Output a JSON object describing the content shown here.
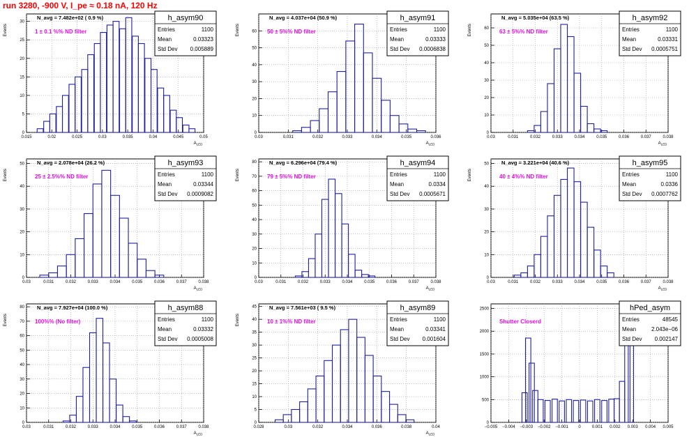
{
  "title": "run 3280,  -900 V, I_pe ≈ 0.18 nA, 120 Hz",
  "chart_data": [
    {
      "type": "bar",
      "name": "h_asym90",
      "ylabel": "Events",
      "xlabel": "A_LED",
      "xlim": [
        0.015,
        0.05
      ],
      "ylim": [
        0,
        32
      ],
      "xticks": [
        "0.015",
        "0.02",
        "0.025",
        "0.03",
        "0.035",
        "0.04",
        "0.045",
        "0.05"
      ],
      "yticks": [
        "0",
        "5",
        "10",
        "15",
        "20",
        "25",
        "30"
      ],
      "navg": "N_avg = 7.482e+02 ( 0.9 %)",
      "annotation": "1 ± 0.1 %% ND filter",
      "stats": {
        "entries": "1100",
        "mean": "0.03323",
        "std_dev": "0.005889"
      },
      "x": [
        0.0165,
        0.0177,
        0.019,
        0.0202,
        0.0215,
        0.0227,
        0.024,
        0.0252,
        0.0265,
        0.0277,
        0.029,
        0.0302,
        0.0315,
        0.0327,
        0.034,
        0.0352,
        0.0365,
        0.0377,
        0.039,
        0.0402,
        0.0415,
        0.0427,
        0.044,
        0.0452,
        0.0465,
        0.0477,
        0.049
      ],
      "values": [
        0,
        1,
        3,
        5,
        7,
        10,
        13,
        15,
        17,
        21,
        24,
        27,
        29,
        30,
        28,
        31,
        26,
        24,
        20,
        17,
        12,
        10,
        6,
        4,
        2,
        1,
        0
      ]
    },
    {
      "type": "bar",
      "name": "h_asym91",
      "ylabel": "Events",
      "xlabel": "A_LED",
      "xlim": [
        0.03,
        0.036
      ],
      "ylim": [
        0,
        70
      ],
      "xticks": [
        "0.03",
        "0.031",
        "0.032",
        "0.033",
        "0.034",
        "0.035",
        "0.036"
      ],
      "yticks": [
        "0",
        "10",
        "20",
        "30",
        "40",
        "50",
        "60"
      ],
      "navg": "N_avg = 4.037e+04 (50.9 %)",
      "annotation": "50 ± 5%% ND filter",
      "stats": {
        "entries": "1100",
        "mean": "0.03333",
        "std_dev": "0.0006838"
      },
      "x": [
        0.0313,
        0.0316,
        0.0319,
        0.0322,
        0.0325,
        0.0328,
        0.0331,
        0.0334,
        0.0337,
        0.034,
        0.0343,
        0.0346,
        0.0349,
        0.0352,
        0.0355
      ],
      "values": [
        1,
        3,
        7,
        14,
        24,
        36,
        54,
        64,
        47,
        32,
        19,
        10,
        5,
        2,
        1
      ]
    },
    {
      "type": "bar",
      "name": "h_asym92",
      "ylabel": "Events",
      "xlabel": "A_LED",
      "xlim": [
        0.03,
        0.038
      ],
      "ylim": [
        0,
        68
      ],
      "xticks": [
        "0.03",
        "0.031",
        "0.032",
        "0.033",
        "0.034",
        "0.035",
        "0.036",
        "0.037",
        "0.038"
      ],
      "yticks": [
        "0",
        "10",
        "20",
        "30",
        "40",
        "50",
        "60"
      ],
      "navg": "N_avg = 5.035e+04 (63.5 %)",
      "annotation": "63 ± 5%% ND filter",
      "stats": {
        "entries": "1100",
        "mean": "0.03331",
        "std_dev": "0.0005751"
      },
      "x": [
        0.0318,
        0.0321,
        0.0324,
        0.0327,
        0.033,
        0.0333,
        0.0336,
        0.0339,
        0.0342,
        0.0345,
        0.0348,
        0.0351
      ],
      "values": [
        1,
        4,
        12,
        28,
        48,
        62,
        55,
        34,
        15,
        5,
        2,
        1
      ]
    },
    {
      "type": "bar",
      "name": "h_asym93",
      "ylabel": "Events",
      "xlabel": "A_LED",
      "xlim": [
        0.03,
        0.038
      ],
      "ylim": [
        0,
        52
      ],
      "xticks": [
        "0.03",
        "0.031",
        "0.032",
        "0.033",
        "0.034",
        "0.035",
        "0.036",
        "0.037",
        "0.038"
      ],
      "yticks": [
        "0",
        "10",
        "20",
        "30",
        "40",
        "50"
      ],
      "navg": "N_avg = 2.078e+04 (26.2 %)",
      "annotation": "25 ± 2.5%% ND filter",
      "stats": {
        "entries": "1100",
        "mean": "0.03344",
        "std_dev": "0.0009082"
      },
      "x": [
        0.0308,
        0.0312,
        0.0316,
        0.032,
        0.0324,
        0.0328,
        0.0332,
        0.0336,
        0.034,
        0.0344,
        0.0348,
        0.0352,
        0.0356,
        0.036
      ],
      "values": [
        1,
        2,
        5,
        10,
        17,
        28,
        41,
        47,
        36,
        26,
        15,
        8,
        3,
        1
      ]
    },
    {
      "type": "bar",
      "name": "h_asym94",
      "ylabel": "Events",
      "xlabel": "A_LED",
      "xlim": [
        0.03,
        0.038
      ],
      "ylim": [
        0,
        82
      ],
      "xticks": [
        "0.03",
        "0.031",
        "0.032",
        "0.033",
        "0.034",
        "0.035",
        "0.036",
        "0.037",
        "0.038"
      ],
      "yticks": [
        "0",
        "10",
        "20",
        "30",
        "40",
        "50",
        "60",
        "70",
        "80"
      ],
      "navg": "N_avg = 6.296e+04 (79.4 %)",
      "annotation": "79 ± 5%% ND filter",
      "stats": {
        "entries": "1100",
        "mean": "0.0334",
        "std_dev": "0.0005671"
      },
      "x": [
        0.0318,
        0.0321,
        0.0324,
        0.0327,
        0.033,
        0.0333,
        0.0336,
        0.0339,
        0.0342,
        0.0345,
        0.0348,
        0.0351
      ],
      "values": [
        1,
        4,
        13,
        30,
        54,
        68,
        58,
        37,
        16,
        5,
        2,
        1
      ]
    },
    {
      "type": "bar",
      "name": "h_asym95",
      "ylabel": "Events",
      "xlabel": "A_LED",
      "xlim": [
        0.03,
        0.038
      ],
      "ylim": [
        0,
        52
      ],
      "xticks": [
        "0.03",
        "0.031",
        "0.032",
        "0.033",
        "0.034",
        "0.035",
        "0.036",
        "0.037",
        "0.038"
      ],
      "yticks": [
        "0",
        "10",
        "20",
        "30",
        "40",
        "50"
      ],
      "navg": "N_avg = 3.221e+04 (40.6 %)",
      "annotation": "40 ± 4%% ND filter",
      "stats": {
        "entries": "1100",
        "mean": "0.0336",
        "std_dev": "0.0007762"
      },
      "x": [
        0.0312,
        0.0315,
        0.0318,
        0.0321,
        0.0324,
        0.0327,
        0.033,
        0.0333,
        0.0336,
        0.0339,
        0.0342,
        0.0345,
        0.0348,
        0.0351,
        0.0354
      ],
      "values": [
        1,
        2,
        5,
        10,
        18,
        27,
        36,
        43,
        48,
        42,
        33,
        22,
        12,
        5,
        2
      ]
    },
    {
      "type": "bar",
      "name": "h_asym88",
      "ylabel": "Events",
      "xlabel": "A_LED",
      "xlim": [
        0.03,
        0.038
      ],
      "ylim": [
        0,
        82
      ],
      "xticks": [
        "0.03",
        "0.031",
        "0.032",
        "0.033",
        "0.034",
        "0.035",
        "0.036",
        "0.037",
        "0.038"
      ],
      "yticks": [
        "0",
        "10",
        "20",
        "30",
        "40",
        "50",
        "60",
        "70",
        "80"
      ],
      "navg": "N_avg = 7.927e+04 (100.0 %)",
      "annotation": "100%% (No filter)",
      "stats": {
        "entries": "1100",
        "mean": "0.03332",
        "std_dev": "0.0005008"
      },
      "x": [
        0.0318,
        0.0321,
        0.0324,
        0.0327,
        0.033,
        0.0333,
        0.0336,
        0.0339,
        0.0342,
        0.0345,
        0.0348
      ],
      "values": [
        1,
        5,
        18,
        38,
        62,
        72,
        55,
        30,
        12,
        4,
        1
      ]
    },
    {
      "type": "bar",
      "name": "h_asym89",
      "ylabel": "Events",
      "xlabel": "A_LED",
      "xlim": [
        0.027,
        0.04
      ],
      "ylim": [
        0,
        46
      ],
      "xticks": [
        "0.028",
        "0.03",
        "0.032",
        "0.034",
        "0.036",
        "0.038",
        "0.04"
      ],
      "yticks": [
        "0",
        "5",
        "10",
        "15",
        "20",
        "25",
        "30",
        "35",
        "40",
        "45"
      ],
      "navg": "N_avg = 7.561e+03 ( 9.5 %)",
      "annotation": "10 ± 1%% ND filter",
      "stats": {
        "entries": "1100",
        "mean": "0.03341",
        "std_dev": "0.001604"
      },
      "x": [
        0.0285,
        0.0291,
        0.0297,
        0.0303,
        0.0309,
        0.0315,
        0.0321,
        0.0327,
        0.0333,
        0.0339,
        0.0345,
        0.0351,
        0.0357,
        0.0363,
        0.0369,
        0.0375,
        0.0381
      ],
      "values": [
        1,
        3,
        5,
        8,
        13,
        18,
        24,
        30,
        36,
        40,
        33,
        26,
        18,
        12,
        7,
        3,
        1
      ]
    },
    {
      "type": "bar",
      "name": "hPed_asym",
      "ylabel": "",
      "xlabel": "",
      "xlim": [
        -0.005,
        0.005
      ],
      "ylim": [
        0,
        2600
      ],
      "xticks": [
        "−0.005",
        "−0.004",
        "−0.003",
        "−0.002",
        "−0.001",
        "0",
        "0.001",
        "0.002",
        "0.003",
        "0.004",
        "0.005"
      ],
      "yticks": [
        "0",
        "500",
        "1000",
        "1500",
        "2000",
        "2500"
      ],
      "navg": "",
      "annotation": "Shutter Closerd",
      "stats": {
        "entries": "48545",
        "mean": "2.043e−06",
        "std_dev": "0.002147"
      },
      "x": [
        -0.0034,
        -0.0031,
        -0.0029,
        -0.0027,
        -0.0025,
        -0.0022,
        -0.0018,
        -0.0014,
        -0.001,
        -0.0006,
        -0.0002,
        0.0002,
        0.0006,
        0.001,
        0.0014,
        0.0018,
        0.0021,
        0.0024,
        0.0027,
        0.0029,
        0.0031
      ],
      "values": [
        0,
        650,
        1850,
        1300,
        700,
        500,
        480,
        510,
        470,
        500,
        480,
        490,
        470,
        500,
        480,
        510,
        520,
        900,
        2500,
        1900,
        0
      ]
    }
  ]
}
